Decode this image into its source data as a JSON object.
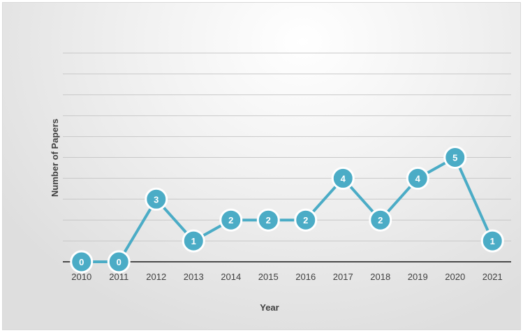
{
  "colors": {
    "series": "#4bacc6",
    "point_border": "#ffffff"
  },
  "chart_data": {
    "type": "line",
    "title": "",
    "xlabel": "Year",
    "ylabel": "Number of Papers",
    "categories": [
      "2010",
      "2011",
      "2012",
      "2013",
      "2014",
      "2015",
      "2016",
      "2017",
      "2018",
      "2019",
      "2020",
      "2021"
    ],
    "series": [
      {
        "values": [
          0,
          0,
          3,
          1,
          2,
          2,
          2,
          4,
          2,
          4,
          5,
          1
        ]
      }
    ],
    "ylim": [
      0,
      10
    ],
    "grid": true,
    "legend": "none",
    "data_labels": true
  }
}
